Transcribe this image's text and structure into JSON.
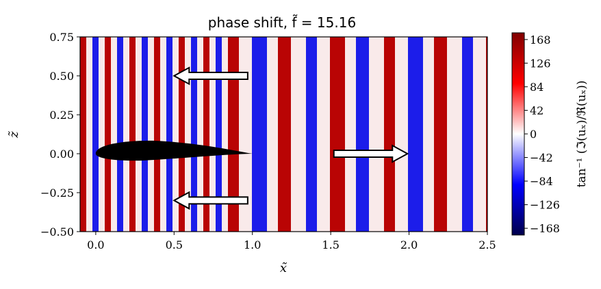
{
  "chart_data": {
    "type": "heatmap",
    "title": "phase shift, f̃ = 15.16",
    "xlabel": "x̃",
    "ylabel": "z̃",
    "xlim": [
      -0.1,
      2.5
    ],
    "ylim": [
      -0.5,
      0.75
    ],
    "x_ticks": [
      0.0,
      0.5,
      1.0,
      1.5,
      2.0,
      2.5
    ],
    "x_tick_labels": [
      "0.0",
      "0.5",
      "1.0",
      "1.5",
      "2.0",
      "2.5"
    ],
    "y_ticks": [
      -0.5,
      -0.25,
      0.0,
      0.25,
      0.5,
      0.75
    ],
    "y_tick_labels": [
      "−0.50",
      "−0.25",
      "0.00",
      "0.25",
      "0.50",
      "0.75"
    ],
    "colorbar": {
      "label": "tan⁻¹ (ℑ(uₓ)/ℜ(uₓ))",
      "min": -180,
      "max": 180,
      "ticks": [
        168,
        126,
        84,
        42,
        0,
        -42,
        -84,
        -126,
        -168
      ],
      "tick_labels": [
        "168",
        "126",
        "84",
        "42",
        "0",
        "−42",
        "−84",
        "−126",
        "−168"
      ],
      "colormap": "seismic",
      "colors": [
        "#00004c",
        "#0000ff",
        "#ffffff",
        "#ff0000",
        "#800000"
      ]
    },
    "annotations": [
      {
        "type": "arrow",
        "direction": "left",
        "from": [
          0.97,
          0.5
        ],
        "to": [
          0.5,
          0.5
        ]
      },
      {
        "type": "arrow",
        "direction": "right",
        "from": [
          1.52,
          0.0
        ],
        "to": [
          1.99,
          0.0
        ]
      },
      {
        "type": "arrow",
        "direction": "left",
        "from": [
          0.97,
          -0.3
        ],
        "to": [
          0.5,
          -0.3
        ]
      }
    ],
    "body": {
      "type": "airfoil",
      "x_start": 0.0,
      "x_end": 1.0
    }
  }
}
